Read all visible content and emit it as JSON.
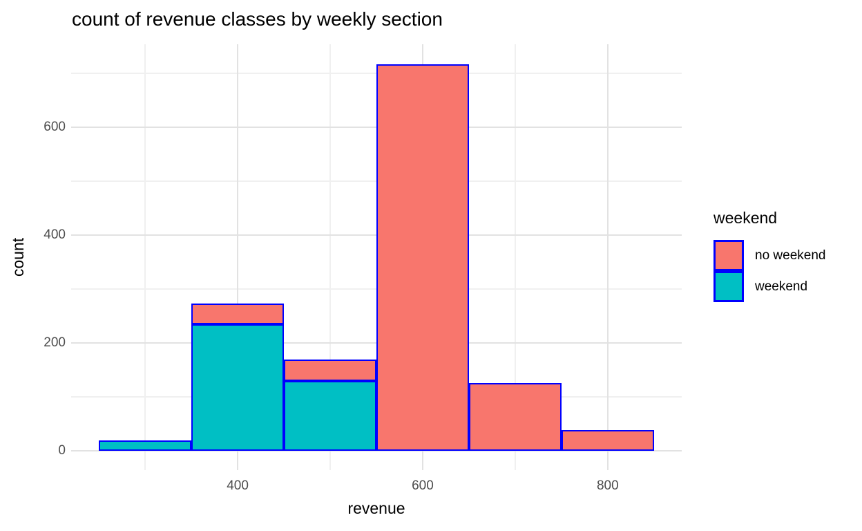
{
  "title": "count of revenue classes by weekly section",
  "axes": {
    "x": {
      "label": "revenue"
    },
    "y": {
      "label": "count"
    }
  },
  "legend": {
    "title": "weekend",
    "entries": [
      {
        "label": "no weekend",
        "color": "#F8766D"
      },
      {
        "label": "weekend",
        "color": "#00BFC4"
      }
    ]
  },
  "chart_data": {
    "type": "bar",
    "subtype": "stacked-histogram",
    "title": "count of revenue classes by weekly section",
    "xlabel": "revenue",
    "ylabel": "count",
    "bin_width": 100,
    "bin_edges": [
      250,
      350,
      450,
      550,
      650,
      750,
      850
    ],
    "bin_centers": [
      300,
      400,
      500,
      600,
      700,
      800
    ],
    "series": [
      {
        "name": "weekend",
        "color": "#00BFC4",
        "values": [
          19,
          235,
          130,
          0,
          0,
          0
        ]
      },
      {
        "name": "no weekend",
        "color": "#F8766D",
        "values": [
          0,
          38,
          39,
          717,
          125,
          39
        ]
      }
    ],
    "stack_order_bottom_to_top": [
      "weekend",
      "no weekend"
    ],
    "bar_outline_color": "#0000FF",
    "x_ticks": [
      400,
      600,
      800
    ],
    "x_minor": [
      300,
      500,
      700
    ],
    "y_ticks": [
      0,
      200,
      400,
      600
    ],
    "y_minor": [
      100,
      300,
      500,
      700
    ],
    "xlim": [
      220,
      880
    ],
    "ylim": [
      -36,
      754
    ],
    "grid": true,
    "legend_position": "right",
    "legend_title": "weekend",
    "grid_major_color": "#E2E2E2",
    "grid_minor_color": "#F0F0F0",
    "tick_label_color": "#4D4D4D"
  }
}
